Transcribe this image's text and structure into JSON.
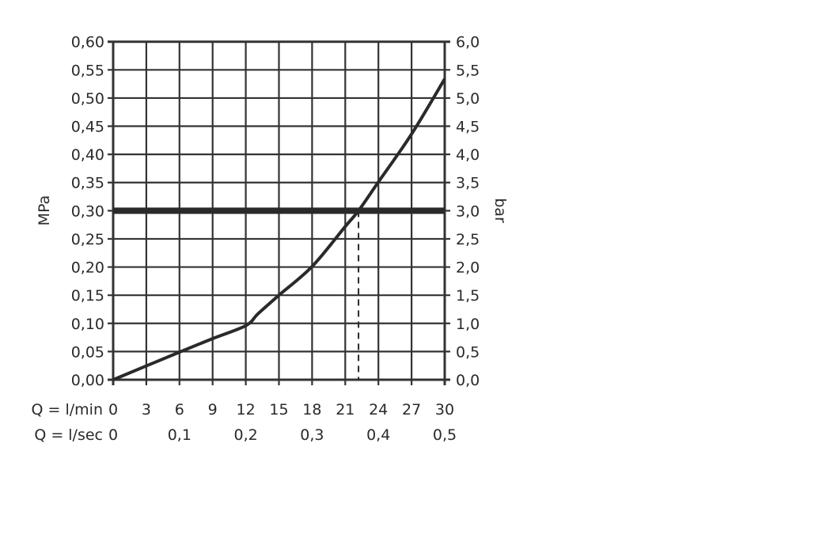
{
  "chart_data": {
    "type": "line",
    "ylabel_left": "MPa",
    "ylabel_right": "bar",
    "xlabel_row1": "Q = l/min",
    "xlabel_row2": "Q = l/sec",
    "xlim": [
      0,
      30
    ],
    "ylim": [
      0,
      0.6
    ],
    "grid": true,
    "x_ticks": [
      "0",
      "3",
      "6",
      "9",
      "12",
      "15",
      "18",
      "21",
      "24",
      "27",
      "30"
    ],
    "x_ticks_values": [
      0,
      3,
      6,
      9,
      12,
      15,
      18,
      21,
      24,
      27,
      30
    ],
    "x2_ticks": [
      "0",
      "0,1",
      "0,2",
      "0,3",
      "0,4",
      "0,5"
    ],
    "x2_ticks_values": [
      0,
      6,
      12,
      18,
      24,
      30
    ],
    "y_ticks_left": [
      "0,00",
      "0,05",
      "0,10",
      "0,15",
      "0,20",
      "0,25",
      "0,30",
      "0,35",
      "0,40",
      "0,45",
      "0,50",
      "0,55",
      "0,60"
    ],
    "y_ticks_right": [
      "0,0",
      "0,5",
      "1,0",
      "1,5",
      "2,0",
      "2,5",
      "3,0",
      "3,5",
      "4,0",
      "4,5",
      "5,0",
      "5,5",
      "6,0"
    ],
    "y_ticks_values": [
      0,
      0.05,
      0.1,
      0.15,
      0.2,
      0.25,
      0.3,
      0.35,
      0.4,
      0.45,
      0.5,
      0.55,
      0.6
    ],
    "series": [
      {
        "x": [
          0,
          6,
          9,
          12,
          13.1,
          15,
          18,
          21,
          22.2,
          24,
          27,
          30
        ],
        "y": [
          0,
          0.049,
          0.073,
          0.096,
          0.117,
          0.15,
          0.201,
          0.272,
          0.3,
          0.351,
          0.436,
          0.534
        ]
      }
    ],
    "reference_line_y": 0.3,
    "reference_drop_x": 22.2,
    "colors": {
      "line": "#2a2a2a",
      "grid": "#333333"
    }
  }
}
